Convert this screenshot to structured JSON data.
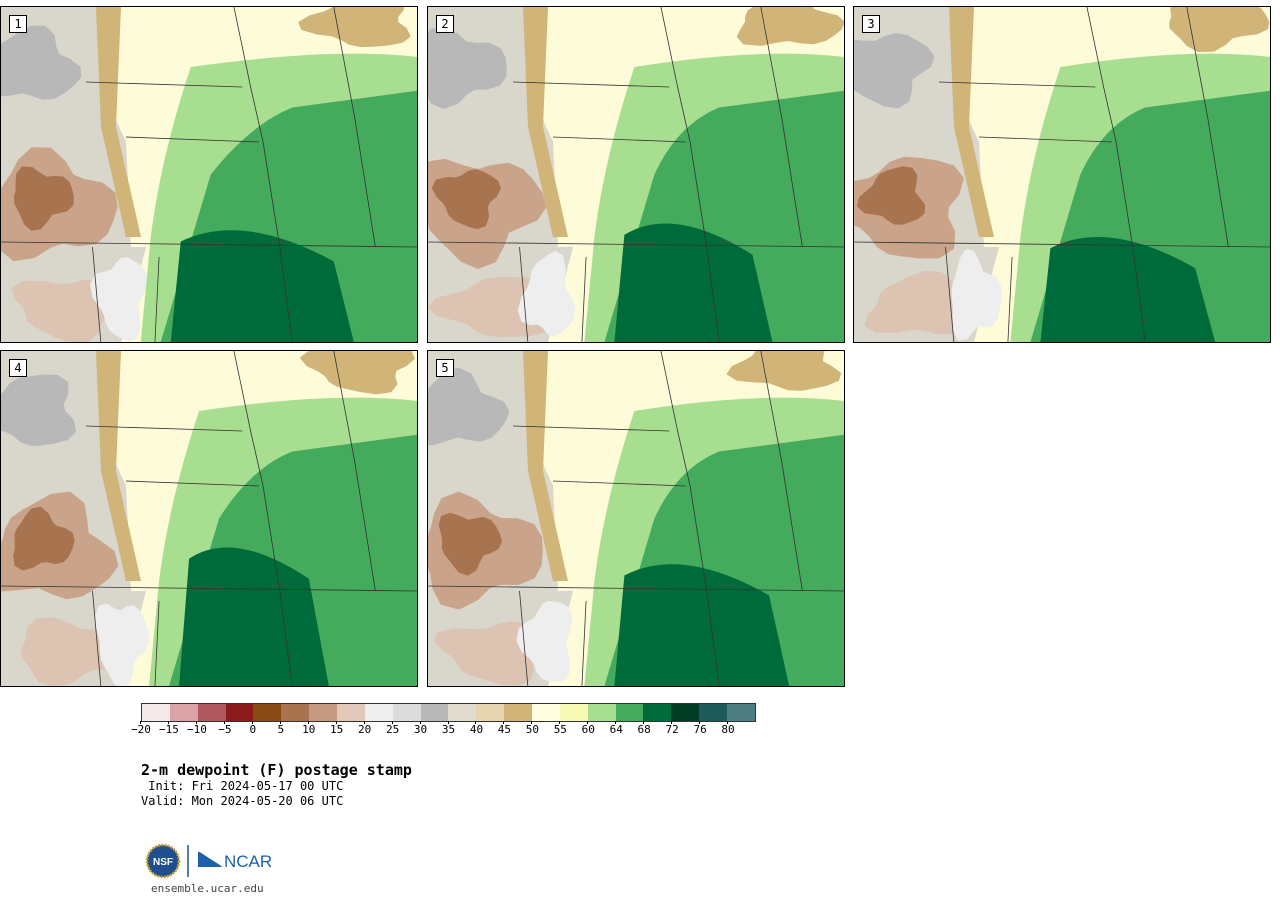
{
  "figure": {
    "title": "2-m dewpoint (F) postage stamp",
    "init": " Init: Fri 2024-05-17 00 UTC",
    "valid": "Valid: Mon 2024-05-20 06 UTC",
    "site": "ensemble.ucar.edu",
    "logo_left": "NSF",
    "logo_right": "NCAR"
  },
  "panels": [
    {
      "label": "1",
      "moist_west_edge": 0.36,
      "core_east_edge": 0.8,
      "core_top": 0.7
    },
    {
      "label": "2",
      "moist_west_edge": 0.4,
      "core_east_edge": 0.78,
      "core_top": 0.68
    },
    {
      "label": "3",
      "moist_west_edge": 0.4,
      "core_east_edge": 0.82,
      "core_top": 0.72
    },
    {
      "label": "4",
      "moist_west_edge": 0.38,
      "core_east_edge": 0.74,
      "core_top": 0.62
    },
    {
      "label": "5",
      "moist_west_edge": 0.4,
      "core_east_edge": 0.82,
      "core_top": 0.67
    }
  ],
  "colorbar": {
    "colors": [
      "#f4e8ea",
      "#d9a3a8",
      "#b0585f",
      "#8b1a1a",
      "#8a4a14",
      "#a87450",
      "#c49a80",
      "#e2c8b8",
      "#eeeeee",
      "#dcdcdc",
      "#b8b8b8",
      "#e0ddd0",
      "#e6d6b0",
      "#d0b478",
      "#fffee0",
      "#f6f9b4",
      "#a8de90",
      "#44aa5c",
      "#006b3a",
      "#003d24",
      "#1d5b5b",
      "#4e7e82"
    ],
    "ticks": [
      "−20",
      "−15",
      "−10",
      "−5",
      "0",
      "5",
      "10",
      "15",
      "20",
      "25",
      "30",
      "35",
      "40",
      "45",
      "50",
      "55",
      "60",
      "64",
      "68",
      "72",
      "76",
      "80"
    ]
  }
}
